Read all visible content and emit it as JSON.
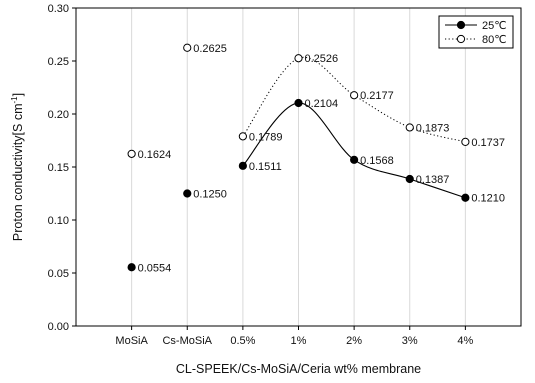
{
  "chart_data": {
    "type": "line",
    "xlabel": "CL-SPEEK/Cs-MoSiA/Ceria wt% membrane",
    "ylabel": "Proton conductivity[S cm",
    "ylabel_superscript": "-1",
    "ylabel_suffix": "]",
    "ylim": [
      0,
      0.3
    ],
    "yticks": [
      "0.00",
      "0.05",
      "0.10",
      "0.15",
      "0.20",
      "0.25",
      "0.30"
    ],
    "ytick_values": [
      0,
      0.05,
      0.1,
      0.15,
      0.2,
      0.25,
      0.3
    ],
    "categories": [
      "MoSiA",
      "Cs-MoSiA",
      "0.5%",
      "1%",
      "2%",
      "3%",
      "4%"
    ],
    "grid": {
      "vertical": true,
      "horizontal": false
    },
    "legend_position": "top-right",
    "series": [
      {
        "name": "25℃",
        "marker": "filled-circle",
        "line_style": "solid",
        "color": "#000000",
        "values": [
          0.0554,
          0.125,
          0.1511,
          0.2104,
          0.1568,
          0.1387,
          0.121
        ],
        "labels": [
          "0.0554",
          "0.1250",
          "0.1511",
          "0.2104",
          "0.1568",
          "0.1387",
          "0.1210"
        ],
        "connected_from_index": 2
      },
      {
        "name": "80℃",
        "marker": "open-circle",
        "line_style": "dotted",
        "color": "#000000",
        "values": [
          0.1624,
          0.2625,
          0.1789,
          0.2526,
          0.2177,
          0.1873,
          0.1737
        ],
        "labels": [
          "0.1624",
          "0.2625",
          "0.1789",
          "0.2526",
          "0.2177",
          "0.1873",
          "0.1737"
        ],
        "connected_from_index": 2
      }
    ]
  }
}
